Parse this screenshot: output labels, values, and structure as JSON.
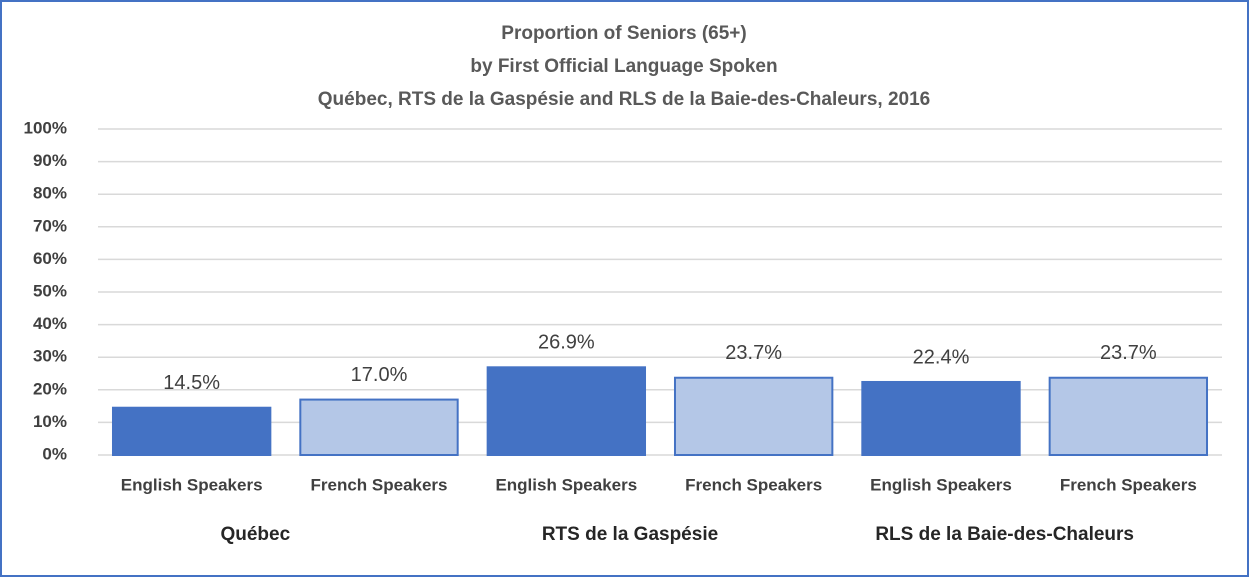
{
  "chart_data": {
    "type": "bar",
    "title": [
      "Proportion of Seniors (65+)",
      "by First Official Language Spoken",
      "Québec, RTS de la Gaspésie and RLS de la Baie-des-Chaleurs, 2016"
    ],
    "categories": [
      "English Speakers",
      "French Speakers",
      "English Speakers",
      "French Speakers",
      "English Speakers",
      "French Speakers"
    ],
    "groups": [
      "Québec",
      "RTS de la Gaspésie",
      "RLS de la Baie-des-Chaleurs"
    ],
    "values": [
      14.5,
      17.0,
      26.9,
      23.7,
      22.4,
      23.7
    ],
    "value_labels": [
      "14.5%",
      "17.0%",
      "26.9%",
      "23.7%",
      "22.4%",
      "23.7%"
    ],
    "colors": [
      "#4472c4",
      "#b4c7e7",
      "#4472c4",
      "#b4c7e7",
      "#4472c4",
      "#b4c7e7"
    ],
    "edgecolor": "#4472c4",
    "ylim": [
      0,
      100
    ],
    "yticks": [
      {
        "value": 0,
        "label": "0%"
      },
      {
        "value": 10,
        "label": "10%"
      },
      {
        "value": 20,
        "label": "20%"
      },
      {
        "value": 30,
        "label": "30%"
      },
      {
        "value": 40,
        "label": "40%"
      },
      {
        "value": 50,
        "label": "50%"
      },
      {
        "value": 60,
        "label": "60%"
      },
      {
        "value": 70,
        "label": "70%"
      },
      {
        "value": 80,
        "label": "80%"
      },
      {
        "value": 90,
        "label": "90%"
      },
      {
        "value": 100,
        "label": "100%"
      }
    ],
    "grid": true
  }
}
